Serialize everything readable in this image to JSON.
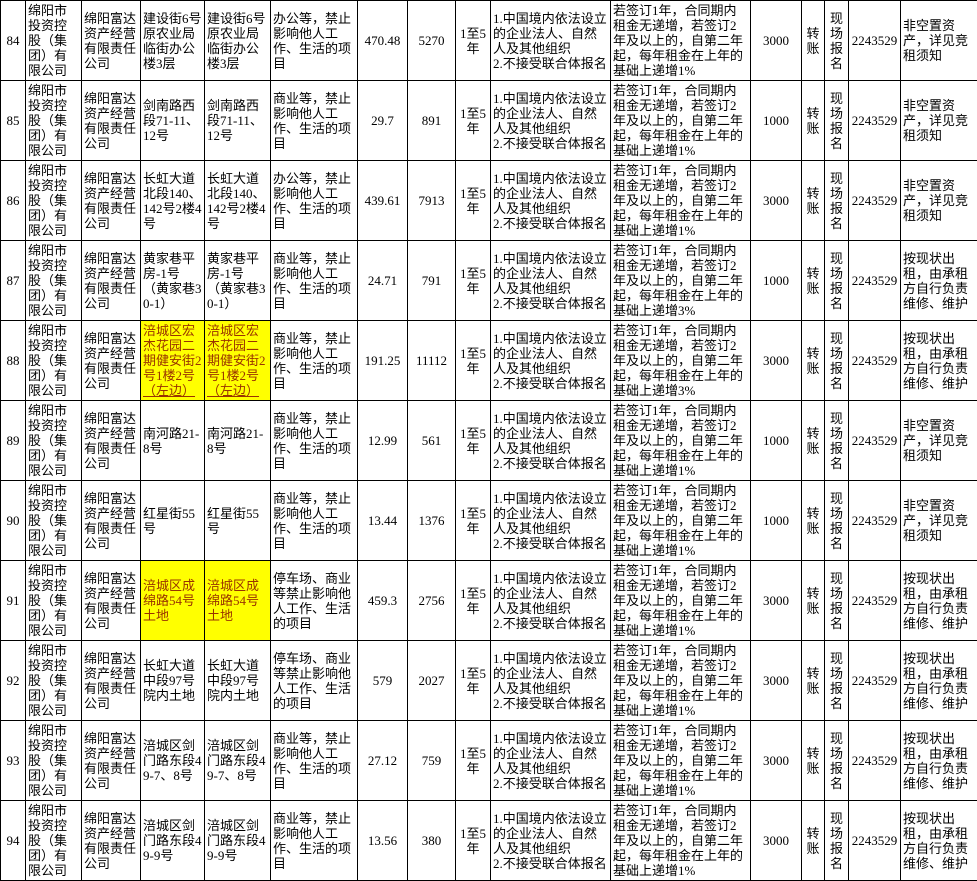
{
  "colors": {
    "highlight_bg": "#FFFF00",
    "highlight_text": "#993300",
    "grid": "#000000",
    "text": "#000000"
  },
  "table": {
    "columns": [
      {
        "key": "no",
        "width": 25,
        "align": "center"
      },
      {
        "key": "owner",
        "width": 56,
        "align": "left"
      },
      {
        "key": "manager",
        "width": 59,
        "align": "left"
      },
      {
        "key": "address",
        "width": 64,
        "align": "left"
      },
      {
        "key": "address2",
        "width": 66,
        "align": "left"
      },
      {
        "key": "usage",
        "width": 87,
        "align": "left"
      },
      {
        "key": "area",
        "width": 50,
        "align": "center"
      },
      {
        "key": "price",
        "width": 48,
        "align": "center"
      },
      {
        "key": "term",
        "width": 35,
        "align": "center"
      },
      {
        "key": "qualification",
        "width": 120,
        "align": "left"
      },
      {
        "key": "rent_terms",
        "width": 140,
        "align": "left"
      },
      {
        "key": "deposit",
        "width": 51,
        "align": "center"
      },
      {
        "key": "payment",
        "width": 23,
        "align": "center"
      },
      {
        "key": "registration",
        "width": 24,
        "align": "center"
      },
      {
        "key": "phone",
        "width": 52,
        "align": "center"
      },
      {
        "key": "note",
        "width": 77,
        "align": "left"
      }
    ],
    "rows": [
      {
        "no": "84",
        "owner": "绵阳市投资控股（集团）有限公司",
        "manager": "绵阳富达资产经营有限责任公司",
        "address": "建设街6号原农业局临街办公楼3层",
        "address2": "建设街6号原农业局临街办公楼3层",
        "usage": "办公等，禁止影响他人工作、生活的项目",
        "area": "470.48",
        "price": "5270",
        "term": "1至5年",
        "qualification": "1.中国境内依法设立的企业法人、自然人及其他组织\n2.不接受联合体报名",
        "rent_terms": "若签订1年，合同期内租金无递增，若签订2年及以上的，自第二年起，每年租金在上年的基础上递增1%",
        "deposit": "3000",
        "payment": "转账",
        "registration": "现场报名",
        "phone": "2243529",
        "note": "非空置资产，详见竞租须知",
        "highlight": false
      },
      {
        "no": "85",
        "owner": "绵阳市投资控股（集团）有限公司",
        "manager": "绵阳富达资产经营有限责任公司",
        "address": "剑南路西段71-11、12号",
        "address2": "剑南路西段71-11、12号",
        "usage": "商业等，禁止影响他人工作、生活的项目",
        "area": "29.7",
        "price": "891",
        "term": "1至5年",
        "qualification": "1.中国境内依法设立的企业法人、自然人及其他组织\n2.不接受联合体报名",
        "rent_terms": "若签订1年，合同期内租金无递增，若签订2年及以上的，自第二年起，每年租金在上年的基础上递增1%",
        "deposit": "1000",
        "payment": "转账",
        "registration": "现场报名",
        "phone": "2243529",
        "note": "非空置资产，详见竞租须知",
        "highlight": false
      },
      {
        "no": "86",
        "owner": "绵阳市投资控股（集团）有限公司",
        "manager": "绵阳富达资产经营有限责任公司",
        "address": "长虹大道北段140、142号2楼4号",
        "address2": "长虹大道北段140、142号2楼4号",
        "usage": "办公等，禁止影响他人工作、生活的项目",
        "area": "439.61",
        "price": "7913",
        "term": "1至5年",
        "qualification": "1.中国境内依法设立的企业法人、自然人及其他组织\n2.不接受联合体报名",
        "rent_terms": "若签订1年，合同期内租金无递增，若签订2年及以上的，自第二年起，每年租金在上年的基础上递增1%",
        "deposit": "3000",
        "payment": "转账",
        "registration": "现场报名",
        "phone": "2243529",
        "note": "非空置资产，详见竞租须知",
        "highlight": false
      },
      {
        "no": "87",
        "owner": "绵阳市投资控股（集团）有限公司",
        "manager": "绵阳富达资产经营有限责任公司",
        "address": "黄家巷平房-1号（黄家巷30-1）",
        "address2": "黄家巷平房-1号（黄家巷30-1）",
        "usage": "商业等，禁止影响他人工作、生活的项目",
        "area": "24.71",
        "price": "791",
        "term": "1至5年",
        "qualification": "1.中国境内依法设立的企业法人、自然人及其他组织\n2.不接受联合体报名",
        "rent_terms": "若签订1年，合同期内租金无递增，若签订2年及以上的，自第二年起，每年租金在上年的基础上递增3%",
        "deposit": "1000",
        "payment": "转账",
        "registration": "现场报名",
        "phone": "2243529",
        "note": "按现状出租，由承租方自行负责维修、维护",
        "highlight": false
      },
      {
        "no": "88",
        "owner": "绵阳市投资控股（集团）有限公司",
        "manager": "绵阳富达资产经营有限责任公司",
        "address": "涪城区宏杰花园二期健安街2号1楼2号（左边）",
        "address2": "涪城区宏杰花园二期健安街2号1楼2号（左边）",
        "address_underlined_suffix": "（左边）",
        "usage": "商业等，禁止影响他人工作、生活的项目",
        "area": "191.25",
        "price": "11112",
        "term": "1至5年",
        "qualification": "1.中国境内依法设立的企业法人、自然人及其他组织\n2.不接受联合体报名",
        "rent_terms": "若签订1年，合同期内租金无递增，若签订2年及以上的，自第二年起，每年租金在上年的基础上递增3%",
        "deposit": "3000",
        "payment": "转账",
        "registration": "现场报名",
        "phone": "2243529",
        "note": "按现状出租，由承租方自行负责维修、维护",
        "highlight": true
      },
      {
        "no": "89",
        "owner": "绵阳市投资控股（集团）有限公司",
        "manager": "绵阳富达资产经营有限责任公司",
        "address": "南河路21-8号",
        "address2": "南河路21-8号",
        "usage": "商业等，禁止影响他人工作、生活的项目",
        "area": "12.99",
        "price": "561",
        "term": "1至5年",
        "qualification": "1.中国境内依法设立的企业法人、自然人及其他组织\n2.不接受联合体报名",
        "rent_terms": "若签订1年，合同期内租金无递增，若签订2年及以上的，自第二年起，每年租金在上年的基础上递增1%",
        "deposit": "1000",
        "payment": "转账",
        "registration": "现场报名",
        "phone": "2243529",
        "note": "非空置资产，详见竞租须知",
        "highlight": false
      },
      {
        "no": "90",
        "owner": "绵阳市投资控股（集团）有限公司",
        "manager": "绵阳富达资产经营有限责任公司",
        "address": "红星街55号",
        "address2": "红星街55号",
        "usage": "商业等，禁止影响他人工作、生活的项目",
        "area": "13.44",
        "price": "1376",
        "term": "1至5年",
        "qualification": "1.中国境内依法设立的企业法人、自然人及其他组织\n2.不接受联合体报名",
        "rent_terms": "若签订1年，合同期内租金无递增，若签订2年及以上的，自第二年起，每年租金在上年的基础上递增1%",
        "deposit": "1000",
        "payment": "转账",
        "registration": "现场报名",
        "phone": "2243529",
        "note": "非空置资产，详见竞租须知",
        "highlight": false
      },
      {
        "no": "91",
        "owner": "绵阳市投资控股（集团）有限公司",
        "manager": "绵阳富达资产经营有限责任公司",
        "address": "涪城区成绵路54号土地",
        "address2": "涪城区成绵路54号土地",
        "usage": "停车场、商业等禁止影响他人工作、生活的项目",
        "area": "459.3",
        "price": "2756",
        "term": "1至5年",
        "qualification": "1.中国境内依法设立的企业法人、自然人及其他组织\n2.不接受联合体报名",
        "rent_terms": "若签订1年，合同期内租金无递增，若签订2年及以上的，自第二年起，每年租金在上年的基础上递增1%",
        "deposit": "3000",
        "payment": "转账",
        "registration": "现场报名",
        "phone": "2243529",
        "note": "按现状出租，由承租方自行负责维修、维护",
        "highlight": true
      },
      {
        "no": "92",
        "owner": "绵阳市投资控股（集团）有限公司",
        "manager": "绵阳富达资产经营有限责任公司",
        "address": "长虹大道中段97号院内土地",
        "address2": "长虹大道中段97号院内土地",
        "usage": "停车场、商业等禁止影响他人工作、生活的项目",
        "area": "579",
        "price": "2027",
        "term": "1至5年",
        "qualification": "1.中国境内依法设立的企业法人、自然人及其他组织\n2.不接受联合体报名",
        "rent_terms": "若签订1年，合同期内租金无递增，若签订2年及以上的，自第二年起，每年租金在上年的基础上递增1%",
        "deposit": "3000",
        "payment": "转账",
        "registration": "现场报名",
        "phone": "2243529",
        "note": "按现状出租，由承租方自行负责维修、维护",
        "highlight": false
      },
      {
        "no": "93",
        "owner": "绵阳市投资控股（集团）有限公司",
        "manager": "绵阳富达资产经营有限责任公司",
        "address": "涪城区剑门路东段49-7、8号",
        "address2": "涪城区剑门路东段49-7、8号",
        "usage": "商业等，禁止影响他人工作、生活的项目",
        "area": "27.12",
        "price": "759",
        "term": "1至5年",
        "qualification": "1.中国境内依法设立的企业法人、自然人及其他组织\n2.不接受联合体报名",
        "rent_terms": "若签订1年，合同期内租金无递增，若签订2年及以上的，自第二年起，每年租金在上年的基础上递增1%",
        "deposit": "3000",
        "payment": "转账",
        "registration": "现场报名",
        "phone": "2243529",
        "note": "按现状出租，由承租方自行负责维修、维护",
        "highlight": false
      },
      {
        "no": "94",
        "owner": "绵阳市投资控股（集团）有限公司",
        "manager": "绵阳富达资产经营有限责任公司",
        "address": "涪城区剑门路东段49-9号",
        "address2": "涪城区剑门路东段49-9号",
        "usage": "商业等，禁止影响他人工作、生活的项目",
        "area": "13.56",
        "price": "380",
        "term": "1至5年",
        "qualification": "1.中国境内依法设立的企业法人、自然人及其他组织\n2.不接受联合体报名",
        "rent_terms": "若签订1年，合同期内租金无递增，若签订2年及以上的，自第二年起，每年租金在上年的基础上递增1%",
        "deposit": "3000",
        "payment": "转账",
        "registration": "现场报名",
        "phone": "2243529",
        "note": "按现状出租，由承租方自行负责维修、维护",
        "highlight": false
      }
    ]
  }
}
